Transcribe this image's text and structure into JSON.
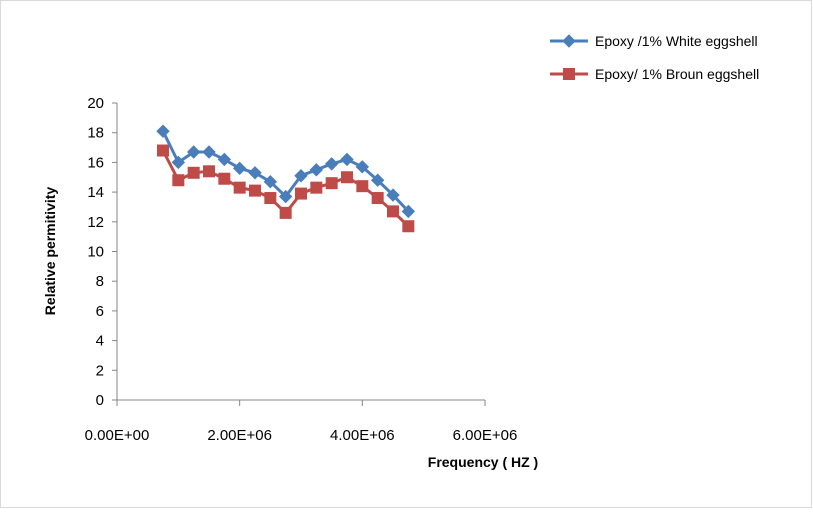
{
  "chart_data": {
    "type": "line",
    "xlabel": "Frequency ( HZ )",
    "ylabel": "Relative permitivity",
    "xlim": [
      0,
      6000000
    ],
    "ylim": [
      0,
      20
    ],
    "x_ticks": [
      0,
      2000000,
      4000000,
      6000000
    ],
    "x_tick_labels": [
      "0.00E+00",
      "2.00E+06",
      "4.00E+06",
      "6.00E+06"
    ],
    "y_ticks": [
      0,
      2,
      4,
      6,
      8,
      10,
      12,
      14,
      16,
      18,
      20
    ],
    "y_tick_labels": [
      "0",
      "2",
      "4",
      "6",
      "8",
      "10",
      "12",
      "14",
      "16",
      "18",
      "20"
    ],
    "grid": false,
    "legend_position": "top-right",
    "x": [
      750000,
      1000000,
      1250000,
      1500000,
      1750000,
      2000000,
      2250000,
      2500000,
      2750000,
      3000000,
      3250000,
      3500000,
      3750000,
      4000000,
      4250000,
      4500000,
      4750000
    ],
    "series": [
      {
        "name": "Epoxy /1% White eggshell",
        "color": "#4A7EBB",
        "marker": "diamond",
        "values": [
          18.1,
          16.0,
          16.7,
          16.7,
          16.2,
          15.6,
          15.3,
          14.7,
          13.7,
          15.1,
          15.5,
          15.9,
          16.2,
          15.7,
          14.8,
          13.8,
          12.7
        ]
      },
      {
        "name": "Epoxy/ 1% Broun eggshell",
        "color": "#BE4B48",
        "marker": "square",
        "values": [
          16.8,
          14.8,
          15.3,
          15.4,
          14.9,
          14.3,
          14.1,
          13.6,
          12.6,
          13.9,
          14.3,
          14.6,
          15.0,
          14.4,
          13.6,
          12.7,
          11.7
        ]
      }
    ]
  }
}
